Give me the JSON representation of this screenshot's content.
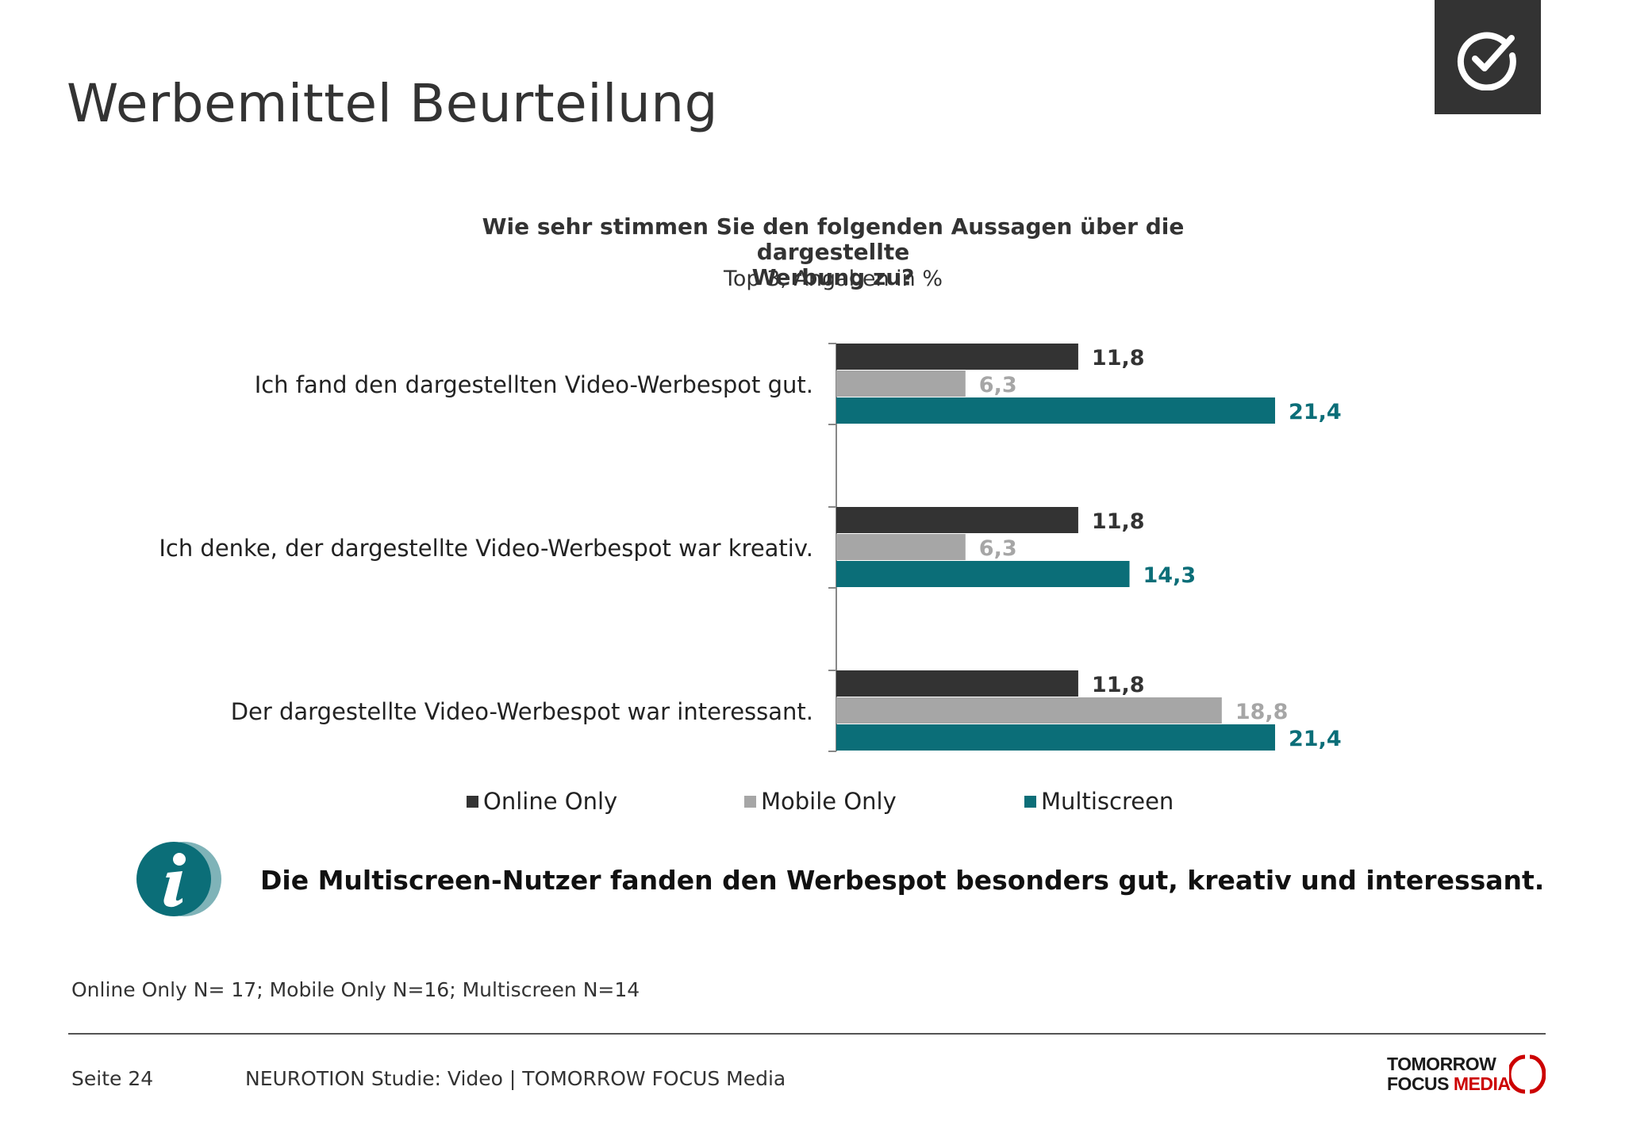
{
  "header": {
    "title": "Werbemittel Beurteilung",
    "check_icon": "check-circle-icon"
  },
  "chart_data": {
    "type": "bar",
    "orientation": "horizontal",
    "title": "Wie sehr stimmen Sie den folgenden Aussagen über die dargestellte Werbung zu?",
    "title_line1": "Wie sehr stimmen Sie den folgenden Aussagen über die dargestellte",
    "title_line2": "Werbung zu?",
    "subtitle": "Top 3, Angaben in %",
    "categories": [
      "Ich fand den dargestellten Video-Werbespot gut.",
      "Ich denke, der dargestellte Video-Werbespot war kreativ.",
      "Der dargestellte Video-Werbespot war interessant."
    ],
    "series": [
      {
        "name": "Online Only",
        "color": "#333333",
        "values": [
          11.8,
          11.8,
          11.8
        ],
        "labels": [
          "11,8",
          "11,8",
          "11,8"
        ]
      },
      {
        "name": "Mobile Only",
        "color": "#a6a6a6",
        "values": [
          6.3,
          6.3,
          18.8
        ],
        "labels": [
          "6,3",
          "6,3",
          "18,8"
        ]
      },
      {
        "name": "Multiscreen",
        "color": "#0b6e78",
        "values": [
          21.4,
          14.3,
          21.4
        ],
        "labels": [
          "21,4",
          "14,3",
          "21,4"
        ]
      }
    ],
    "xlim": [
      0,
      21.4
    ],
    "grid": false,
    "legend_position": "bottom"
  },
  "info": {
    "icon": "info-icon",
    "text": "Die Multiscreen-Nutzer fanden den Werbespot besonders gut, kreativ und interessant."
  },
  "sample_note": "Online Only N= 17; Mobile Only N=16; Multiscreen N=14",
  "footer": {
    "page": "Seite 24",
    "source": "NEUROTION Studie: Video | TOMORROW FOCUS Media",
    "logo_line1": "TOMORROW",
    "logo_line2_a": "FOCUS ",
    "logo_line2_b": "MEDIA"
  }
}
